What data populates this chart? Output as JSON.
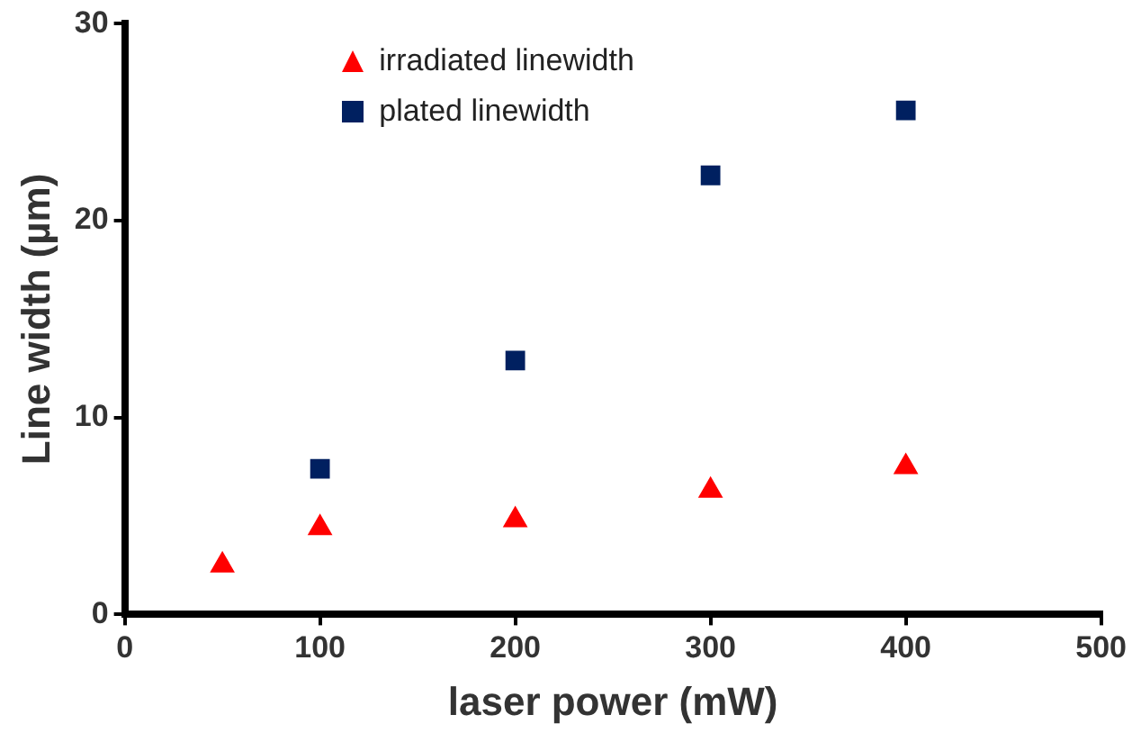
{
  "chart_data": {
    "type": "scatter",
    "xlabel": "laser power (mW)",
    "ylabel": "Line width (µm)",
    "xlim": [
      0,
      500
    ],
    "xticks": [
      0,
      100,
      200,
      300,
      400,
      500
    ],
    "ylim": [
      0,
      30
    ],
    "yticks": [
      0,
      10,
      20,
      30
    ],
    "grid": false,
    "legend": "top",
    "series": [
      {
        "name": "irradiated linewidth",
        "color": "#ff0000",
        "marker": "triangle",
        "x": [
          50,
          100,
          200,
          300,
          400
        ],
        "values": [
          2.5,
          4.4,
          4.8,
          6.3,
          7.5
        ]
      },
      {
        "name": "plated linewidth",
        "color": "#002060",
        "marker": "square",
        "x": [
          100,
          200,
          300,
          400
        ],
        "values": [
          7.4,
          12.9,
          22.3,
          25.6
        ]
      }
    ]
  }
}
